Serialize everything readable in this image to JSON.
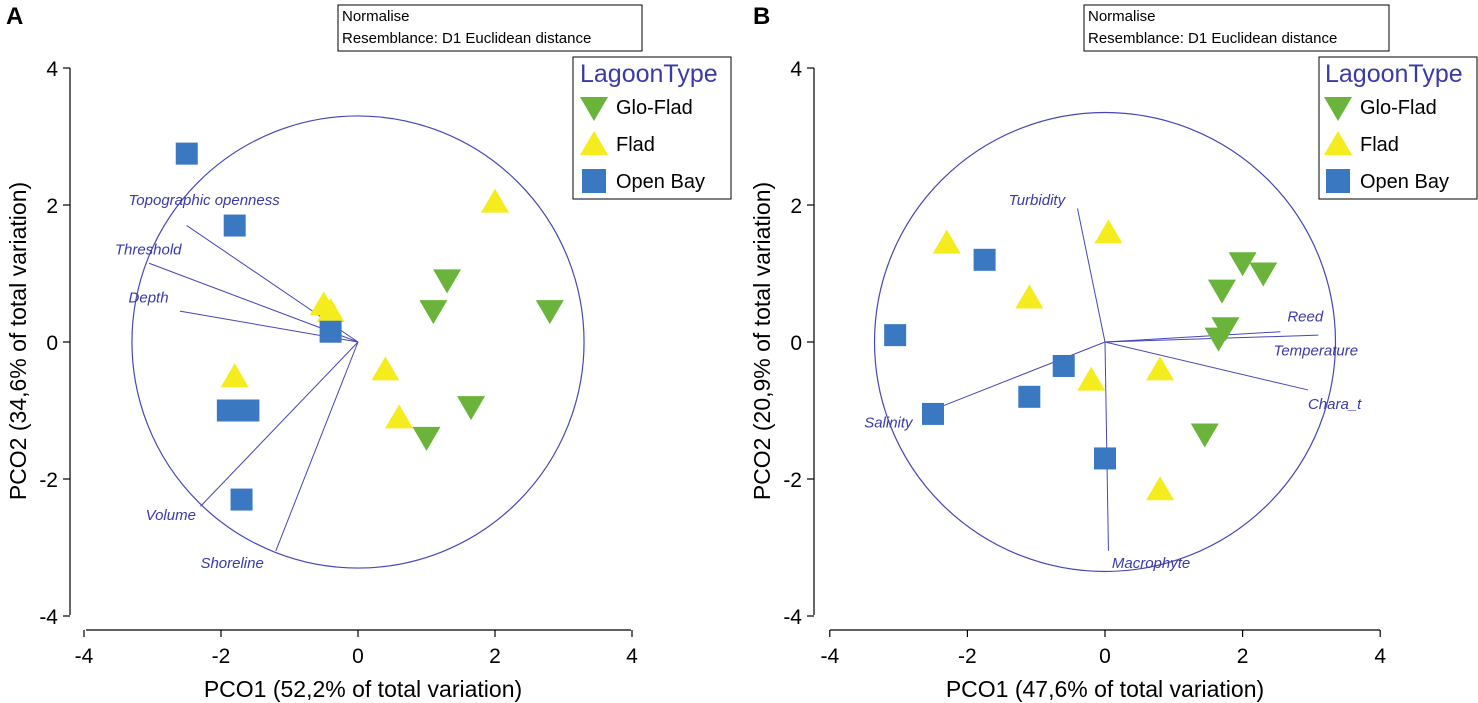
{
  "colors": {
    "glo_flad": "#6ab43c",
    "flad": "#f4ec1c",
    "open_bay": "#3a78c2",
    "vectors": "#4747b5",
    "axis": "#000000"
  },
  "chart_data": [
    {
      "type": "scatter",
      "panel_label": "A",
      "info_lines": [
        "Normalise",
        "Resemblance: D1 Euclidean distance"
      ],
      "xlabel": "PCO1 (52,2% of total variation)",
      "ylabel": "PCO2 (34,6% of total variation)",
      "xlim": [
        -4,
        4
      ],
      "ylim": [
        -4,
        4
      ],
      "xticks": [
        "-4",
        "-2",
        "0",
        "2",
        "4"
      ],
      "yticks": [
        "4",
        "2",
        "0",
        "-2",
        "-4"
      ],
      "circle_radius": 3.3,
      "legend": {
        "title": "LagoonType",
        "items": [
          {
            "key": "glo_flad",
            "label": "Glo-Flad",
            "marker": "triangle-down"
          },
          {
            "key": "flad",
            "label": "Flad",
            "marker": "triangle-up"
          },
          {
            "key": "open_bay",
            "label": "Open Bay",
            "marker": "square"
          }
        ]
      },
      "series": [
        {
          "key": "glo_flad",
          "name": "Glo-Flad",
          "marker": "triangle-down",
          "points": [
            [
              1.3,
              0.9
            ],
            [
              1.1,
              0.45
            ],
            [
              2.8,
              0.45
            ],
            [
              1.65,
              -0.95
            ],
            [
              1.0,
              -1.4
            ]
          ]
        },
        {
          "key": "flad",
          "name": "Flad",
          "marker": "triangle-up",
          "points": [
            [
              2.0,
              2.05
            ],
            [
              -0.5,
              0.55
            ],
            [
              -0.4,
              0.45
            ],
            [
              0.4,
              -0.4
            ],
            [
              0.6,
              -1.1
            ],
            [
              -1.8,
              -0.5
            ]
          ]
        },
        {
          "key": "open_bay",
          "name": "Open Bay",
          "marker": "square",
          "points": [
            [
              -2.5,
              2.75
            ],
            [
              -1.8,
              1.7
            ],
            [
              -0.4,
              0.15
            ],
            [
              -1.9,
              -1.0
            ],
            [
              -1.6,
              -1.0
            ],
            [
              -1.7,
              -2.3
            ]
          ]
        }
      ],
      "vectors": [
        {
          "name": "Topographic openness",
          "end": [
            -2.5,
            1.7
          ],
          "label_at": [
            -3.35,
            2.0
          ],
          "anchor": "start"
        },
        {
          "name": "Threshold",
          "end": [
            -3.05,
            1.15
          ],
          "label_at": [
            -3.55,
            1.28
          ],
          "anchor": "start"
        },
        {
          "name": "Depth",
          "end": [
            -2.6,
            0.45
          ],
          "label_at": [
            -3.35,
            0.58
          ],
          "anchor": "start"
        },
        {
          "name": "Volume",
          "end": [
            -2.3,
            -2.4
          ],
          "label_at": [
            -3.1,
            -2.6
          ],
          "anchor": "start"
        },
        {
          "name": "Shoreline",
          "end": [
            -1.2,
            -3.05
          ],
          "label_at": [
            -2.3,
            -3.3
          ],
          "anchor": "start"
        }
      ]
    },
    {
      "type": "scatter",
      "panel_label": "B",
      "info_lines": [
        "Normalise",
        "Resemblance: D1 Euclidean distance"
      ],
      "xlabel": "PCO1 (47,6% of total variation)",
      "ylabel": "PCO2 (20,9% of total variation)",
      "xlim": [
        -4,
        4
      ],
      "ylim": [
        -4,
        4
      ],
      "xticks": [
        "-4",
        "-2",
        "0",
        "2",
        "4"
      ],
      "yticks": [
        "4",
        "2",
        "0",
        "-2",
        "-4"
      ],
      "circle_radius": 3.35,
      "legend": {
        "title": "LagoonType",
        "items": [
          {
            "key": "glo_flad",
            "label": "Glo-Flad",
            "marker": "triangle-down"
          },
          {
            "key": "flad",
            "label": "Flad",
            "marker": "triangle-up"
          },
          {
            "key": "open_bay",
            "label": "Open Bay",
            "marker": "square"
          }
        ]
      },
      "series": [
        {
          "key": "glo_flad",
          "name": "Glo-Flad",
          "marker": "triangle-down",
          "points": [
            [
              2.0,
              1.15
            ],
            [
              2.3,
              1.0
            ],
            [
              1.7,
              0.75
            ],
            [
              1.75,
              0.2
            ],
            [
              1.65,
              0.05
            ],
            [
              1.45,
              -1.35
            ]
          ]
        },
        {
          "key": "flad",
          "name": "Flad",
          "marker": "triangle-up",
          "points": [
            [
              -2.3,
              1.45
            ],
            [
              0.05,
              1.6
            ],
            [
              -1.1,
              0.65
            ],
            [
              0.8,
              -0.4
            ],
            [
              -0.2,
              -0.55
            ],
            [
              0.8,
              -2.15
            ]
          ]
        },
        {
          "key": "open_bay",
          "name": "Open Bay",
          "marker": "square",
          "points": [
            [
              -1.75,
              1.2
            ],
            [
              -3.05,
              0.1
            ],
            [
              -0.6,
              -0.35
            ],
            [
              -1.1,
              -0.8
            ],
            [
              -2.5,
              -1.05
            ],
            [
              0.0,
              -1.7
            ]
          ]
        }
      ],
      "vectors": [
        {
          "name": "Turbidity",
          "end": [
            -0.4,
            1.95
          ],
          "label_at": [
            -1.4,
            2.0
          ],
          "anchor": "start"
        },
        {
          "name": "Reed",
          "end": [
            2.55,
            0.15
          ],
          "label_at": [
            2.65,
            0.3
          ],
          "anchor": "start"
        },
        {
          "name": "Temperature",
          "end": [
            3.1,
            0.1
          ],
          "label_at": [
            2.45,
            -0.2
          ],
          "anchor": "start"
        },
        {
          "name": "Chara_t",
          "end": [
            2.95,
            -0.7
          ],
          "label_at": [
            2.95,
            -0.98
          ],
          "anchor": "start"
        },
        {
          "name": "Salinity",
          "end": [
            -2.4,
            -0.95
          ],
          "label_at": [
            -3.5,
            -1.25
          ],
          "anchor": "start"
        },
        {
          "name": "Macrophyte",
          "end": [
            0.05,
            -3.05
          ],
          "label_at": [
            0.1,
            -3.3
          ],
          "anchor": "start"
        }
      ]
    }
  ]
}
